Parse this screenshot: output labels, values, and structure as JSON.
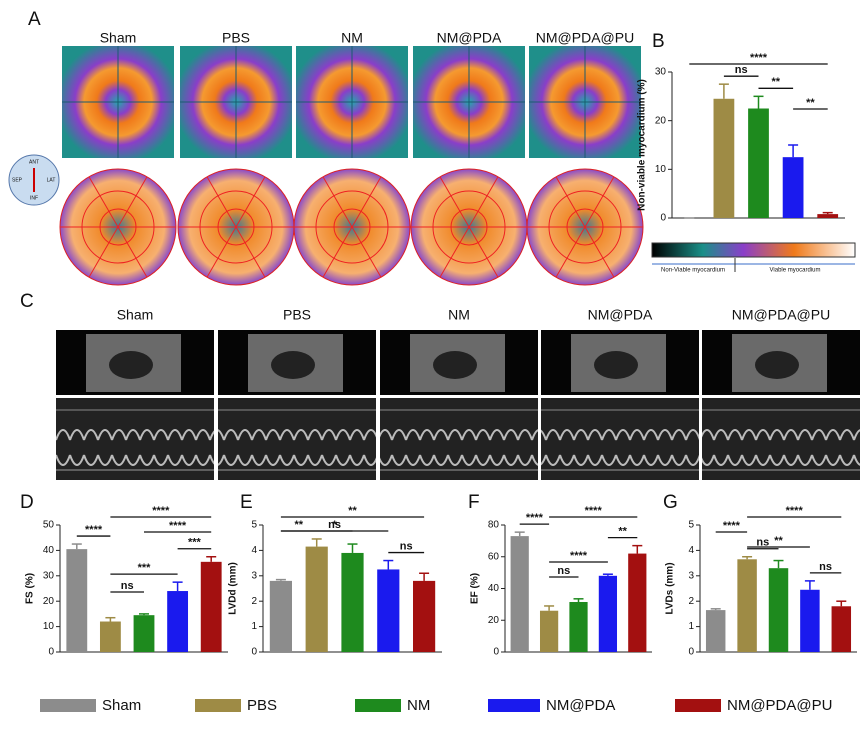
{
  "panel_labels": [
    "A",
    "B",
    "C",
    "D",
    "E",
    "F",
    "G"
  ],
  "image_columns": [
    "Sham",
    "PBS",
    "NM",
    "NM@PDA",
    "NM@PDA@PU"
  ],
  "compass": [
    "ANT",
    "SEP",
    "LAT",
    "INF"
  ],
  "colorbar_labels": [
    "Non-Viable myocardium",
    "Viable myocardium"
  ],
  "legend": [
    {
      "name": "Sham",
      "color": "#8c8c8c"
    },
    {
      "name": "PBS",
      "color": "#9e8b45"
    },
    {
      "name": "NM",
      "color": "#1e8a1e"
    },
    {
      "name": "NM@PDA",
      "color": "#1a1aee"
    },
    {
      "name": "NM@PDA@PU",
      "color": "#a31010"
    }
  ],
  "chart_data": [
    {
      "type": "bar",
      "ylabel": "Non-viable myocardium (%)",
      "values": [
        0,
        24.5,
        22.5,
        12.5,
        0.8
      ],
      "errors": [
        0,
        3,
        2.5,
        2.5,
        0.3
      ],
      "ylim": [
        0,
        30
      ],
      "yticks": [
        0,
        10,
        20,
        30
      ],
      "annotations": [
        {
          "label": "****",
          "from": 0,
          "to": 4
        },
        {
          "label": "ns",
          "from": 1,
          "to": 2
        },
        {
          "label": "**",
          "from": 2,
          "to": 3
        },
        {
          "label": "**",
          "from": 3,
          "to": 4
        }
      ]
    },
    {
      "type": "bar",
      "ylabel": "FS (%)",
      "values": [
        40.5,
        12,
        14.5,
        24,
        35.5
      ],
      "errors": [
        2,
        1.5,
        0.5,
        3.5,
        2
      ],
      "ylim": [
        0,
        50
      ],
      "yticks": [
        0,
        10,
        20,
        30,
        40,
        50
      ],
      "annotations": [
        {
          "label": "****",
          "from": 1,
          "to": 4
        },
        {
          "label": "****",
          "from": 2,
          "to": 4
        },
        {
          "label": "****",
          "from": 0,
          "to": 1
        },
        {
          "label": "***",
          "from": 3,
          "to": 4
        },
        {
          "label": "***",
          "from": 1,
          "to": 3
        },
        {
          "label": "ns",
          "from": 1,
          "to": 2
        }
      ]
    },
    {
      "type": "bar",
      "ylabel": "LVDd (mm)",
      "values": [
        2.8,
        4.15,
        3.9,
        3.25,
        2.8
      ],
      "errors": [
        0.05,
        0.3,
        0.35,
        0.35,
        0.3
      ],
      "ylim": [
        0,
        5
      ],
      "yticks": [
        0,
        1,
        2,
        3,
        4,
        5
      ],
      "annotations": [
        {
          "label": "**",
          "from": 0,
          "to": 4
        },
        {
          "label": "*",
          "from": 0,
          "to": 3
        },
        {
          "label": "**",
          "from": 0,
          "to": 1
        },
        {
          "label": "ns",
          "from": 1,
          "to": 2
        },
        {
          "label": "ns",
          "from": 3,
          "to": 4
        }
      ]
    },
    {
      "type": "bar",
      "ylabel": "EF (%)",
      "values": [
        73,
        26,
        31.5,
        48,
        62
      ],
      "errors": [
        2.5,
        3,
        2,
        1,
        5
      ],
      "ylim": [
        0,
        80
      ],
      "yticks": [
        0,
        20,
        40,
        60,
        80
      ],
      "annotations": [
        {
          "label": "****",
          "from": 1,
          "to": 4
        },
        {
          "label": "****",
          "from": 0,
          "to": 1
        },
        {
          "label": "**",
          "from": 3,
          "to": 4
        },
        {
          "label": "****",
          "from": 1,
          "to": 3
        },
        {
          "label": "ns",
          "from": 1,
          "to": 2
        }
      ]
    },
    {
      "type": "bar",
      "ylabel": "LVDs (mm)",
      "values": [
        1.65,
        3.65,
        3.3,
        2.45,
        1.8
      ],
      "errors": [
        0.05,
        0.1,
        0.3,
        0.35,
        0.2
      ],
      "ylim": [
        0,
        5
      ],
      "yticks": [
        0,
        1,
        2,
        3,
        4,
        5
      ],
      "annotations": [
        {
          "label": "****",
          "from": 1,
          "to": 4
        },
        {
          "label": "****",
          "from": 0,
          "to": 1
        },
        {
          "label": "**",
          "from": 1,
          "to": 3
        },
        {
          "label": "ns",
          "from": 1,
          "to": 2
        },
        {
          "label": "ns",
          "from": 3,
          "to": 4
        }
      ]
    }
  ]
}
